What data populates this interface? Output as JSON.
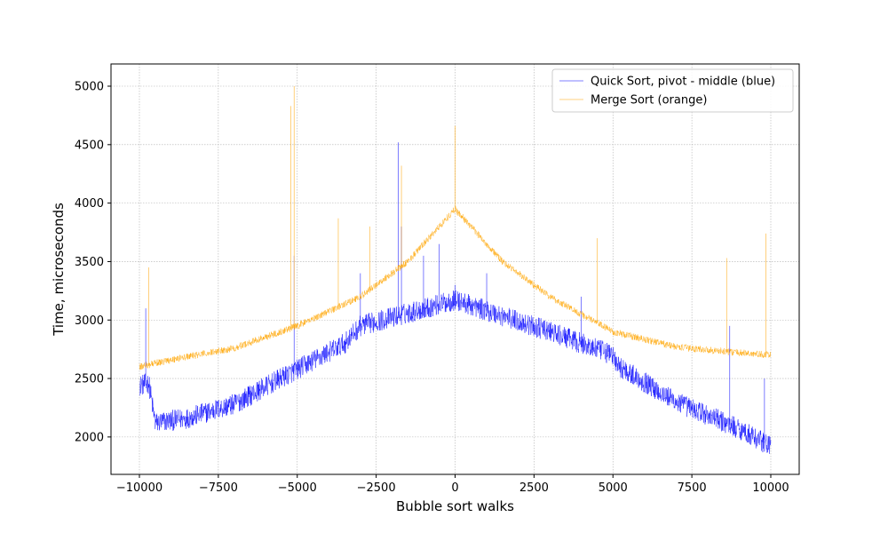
{
  "chart_data": {
    "type": "line",
    "title": "",
    "xlabel": "Bubble sort walks",
    "ylabel": "Time, microseconds",
    "xlim": [
      -10900,
      10900
    ],
    "ylim": [
      1680,
      5190
    ],
    "xticks": [
      -10000,
      -7500,
      -5000,
      -2500,
      0,
      2500,
      5000,
      7500,
      10000
    ],
    "xtick_labels": [
      "−10000",
      "−7500",
      "−5000",
      "−2500",
      "0",
      "2500",
      "5000",
      "7500",
      "10000"
    ],
    "yticks": [
      2000,
      2500,
      3000,
      3500,
      4000,
      4500,
      5000
    ],
    "ytick_labels": [
      "2000",
      "2500",
      "3000",
      "3500",
      "4000",
      "4500",
      "5000"
    ],
    "grid": true,
    "legend_position": "top-right",
    "series": [
      {
        "name": "Quick Sort, pivot - middle (blue)",
        "color": "#0000ff",
        "x_range": [
          -10000,
          10000
        ],
        "baseline_points": [
          [
            -10000,
            2440
          ],
          [
            -9700,
            2460
          ],
          [
            -9500,
            2120
          ],
          [
            -8500,
            2160
          ],
          [
            -7000,
            2280
          ],
          [
            -6000,
            2430
          ],
          [
            -3500,
            2800
          ],
          [
            -3000,
            2950
          ],
          [
            0,
            3170
          ],
          [
            3000,
            2900
          ],
          [
            5000,
            2700
          ],
          [
            5100,
            2620
          ],
          [
            7000,
            2300
          ],
          [
            9000,
            2070
          ],
          [
            10000,
            1920
          ]
        ],
        "noise_spread": 90,
        "spikes": [
          [
            -9800,
            3100
          ],
          [
            -5100,
            3550
          ],
          [
            -1800,
            4520
          ],
          [
            -1700,
            3800
          ],
          [
            -3000,
            3400
          ],
          [
            -1000,
            3550
          ],
          [
            -500,
            3650
          ],
          [
            0,
            3300
          ],
          [
            1000,
            3400
          ],
          [
            4000,
            3200
          ],
          [
            8700,
            2950
          ],
          [
            9800,
            2500
          ]
        ]
      },
      {
        "name": "Merge Sort (orange)",
        "color": "#ffa500",
        "x_range": [
          -10000,
          10000
        ],
        "baseline_points": [
          [
            -10000,
            2600
          ],
          [
            -9000,
            2660
          ],
          [
            -7000,
            2760
          ],
          [
            -5000,
            2950
          ],
          [
            -3000,
            3200
          ],
          [
            -1500,
            3500
          ],
          [
            0,
            3950
          ],
          [
            1500,
            3500
          ],
          [
            3000,
            3200
          ],
          [
            5000,
            2900
          ],
          [
            7000,
            2770
          ],
          [
            9000,
            2720
          ],
          [
            10000,
            2700
          ]
        ],
        "noise_spread": 30,
        "spikes": [
          [
            -5100,
            5000
          ],
          [
            -5200,
            4830
          ],
          [
            -1700,
            4320
          ],
          [
            0,
            4660
          ],
          [
            -9700,
            3450
          ],
          [
            9850,
            3740
          ],
          [
            8600,
            3530
          ],
          [
            4500,
            3700
          ],
          [
            -3700,
            3870
          ],
          [
            -2700,
            3800
          ]
        ]
      }
    ]
  }
}
